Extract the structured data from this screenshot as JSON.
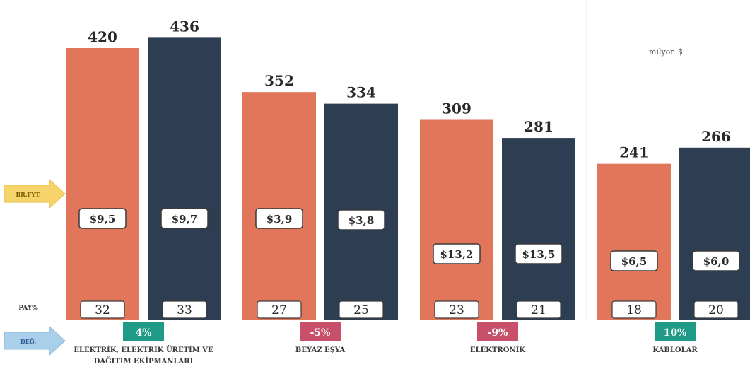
{
  "unit_label": "milyon $",
  "labels": {
    "price": "BR.FYT.",
    "share": "PAY%",
    "change": "DEĞ."
  },
  "colors": {
    "series_a": "#E2765A",
    "series_b": "#2E3E52",
    "pos": "#1E9A86",
    "neg": "#C8506A",
    "price_arrow": "#F7D46B",
    "change_arrow": "#A9CFEA"
  },
  "chart_data": {
    "type": "bar",
    "ylim": [
      0,
      460
    ],
    "categories": [
      "ELEKTRİK, ELEKTRİK ÜRETİM VE DAĞITIM EKİPMANLARI",
      "BEYAZ EŞYA",
      "ELEKTRONİK",
      "KABLOLAR"
    ],
    "series": [
      {
        "values": [
          420,
          352,
          309,
          241
        ],
        "prices": [
          "$9,5",
          "$3,9",
          "$13,2",
          "$6,5"
        ],
        "shares": [
          "32",
          "27",
          "23",
          "18"
        ]
      },
      {
        "values": [
          436,
          334,
          281,
          266
        ],
        "prices": [
          "$9,7",
          "$3,8",
          "$13,5",
          "$6,0"
        ],
        "shares": [
          "33",
          "25",
          "21",
          "20"
        ]
      }
    ],
    "changes": [
      "4%",
      "-5%",
      "-9%",
      "10%"
    ],
    "change_values": [
      4,
      -5,
      -9,
      10
    ]
  }
}
